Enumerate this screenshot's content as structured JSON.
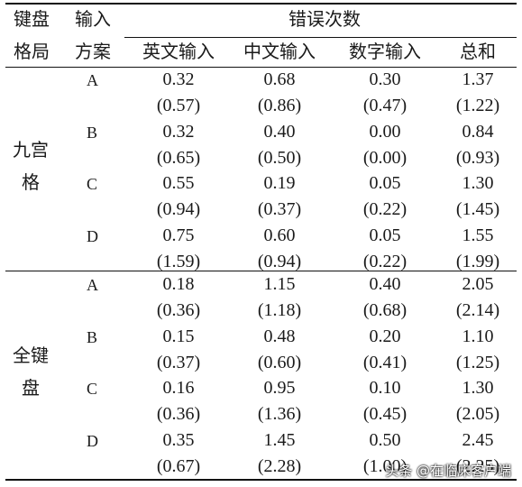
{
  "headers": {
    "col1_line1": "键盘",
    "col1_line2": "格局",
    "col2_line1": "输入",
    "col2_line2": "方案",
    "errors_title": "错误次数",
    "sub": [
      "英文输入",
      "中文输入",
      "数字输入",
      "总和"
    ]
  },
  "groups": [
    {
      "name_line1": "九宫",
      "name_line2": "格",
      "rows": [
        {
          "plan": "A",
          "v": [
            "0.32",
            "0.68",
            "0.30",
            "1.37"
          ],
          "sd": [
            "(0.57)",
            "(0.86)",
            "(0.47)",
            "(1.22)"
          ]
        },
        {
          "plan": "B",
          "v": [
            "0.32",
            "0.40",
            "0.00",
            "0.84"
          ],
          "sd": [
            "(0.65)",
            "(0.50)",
            "(0.00)",
            "(0.93)"
          ]
        },
        {
          "plan": "C",
          "v": [
            "0.55",
            "0.19",
            "0.05",
            "1.30"
          ],
          "sd": [
            "(0.94)",
            "(0.37)",
            "(0.22)",
            "(1.45)"
          ]
        },
        {
          "plan": "D",
          "v": [
            "0.75",
            "0.60",
            "0.05",
            "1.55"
          ],
          "sd": [
            "(1.59)",
            "(0.94)",
            "(0.22)",
            "(1.99)"
          ]
        }
      ]
    },
    {
      "name_line1": "全键",
      "name_line2": "盘",
      "rows": [
        {
          "plan": "A",
          "v": [
            "0.18",
            "1.15",
            "0.40",
            "2.05"
          ],
          "sd": [
            "(0.36)",
            "(1.18)",
            "(0.68)",
            "(2.14)"
          ]
        },
        {
          "plan": "B",
          "v": [
            "0.15",
            "0.48",
            "0.20",
            "1.10"
          ],
          "sd": [
            "(0.37)",
            "(0.60)",
            "(0.41)",
            "(1.25)"
          ]
        },
        {
          "plan": "C",
          "v": [
            "0.16",
            "0.95",
            "0.10",
            "1.30"
          ],
          "sd": [
            "(0.36)",
            "(1.36)",
            "(0.45)",
            "(2.05)"
          ]
        },
        {
          "plan": "D",
          "v": [
            "0.35",
            "1.45",
            "0.50",
            "2.45"
          ],
          "sd": [
            "(0.67)",
            "(2.28)",
            "(1.00)",
            "(2.25)"
          ]
        }
      ]
    }
  ],
  "watermark": "头条 @在临床客户端"
}
